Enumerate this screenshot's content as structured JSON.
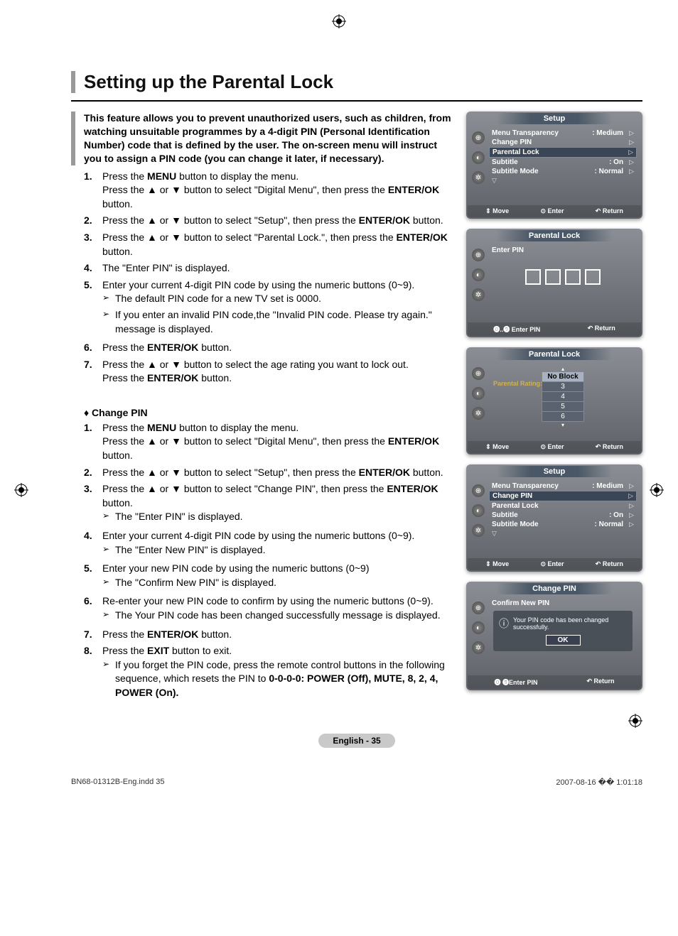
{
  "page": {
    "title": "Setting up the Parental Lock",
    "intro": "This feature allows you to prevent unauthorized users, such as children, from watching unsuitable programmes by a 4-digit PIN (Personal Identification Number) code that is defined by the user.  The on-screen menu will instruct you to assign a PIN code (you can change it later, if necessary).",
    "badge": "English - 35"
  },
  "steps1": [
    {
      "n": "1.",
      "body": "Press the <b>MENU</b> button to display the menu.<br>Press the ▲ or ▼ button to select \"Digital Menu\", then press the <b>ENTER/OK</b> button."
    },
    {
      "n": "2.",
      "body": "Press the ▲ or ▼ button to select \"Setup\", then press the <b>ENTER/OK</b> button."
    },
    {
      "n": "3.",
      "body": "Press the ▲ or ▼ button to select \"Parental Lock.\", then press the <b>ENTER/OK</b> button."
    },
    {
      "n": "4.",
      "body": "The \"Enter PIN\" is displayed."
    },
    {
      "n": "5.",
      "body": "Enter your current 4-digit PIN code by using the numeric buttons (0~9).",
      "subs": [
        "The default PIN code for a new TV set is 0000.",
        "If you enter an invalid PIN code,the \"Invalid PIN code. Please try again.\" message is displayed."
      ]
    },
    {
      "n": "6.",
      "body": "Press the <b>ENTER/OK</b> button."
    },
    {
      "n": "7.",
      "body": "Press the ▲ or ▼ button to select the age rating you want to lock out.<br>Press the <b>ENTER/OK</b> button."
    }
  ],
  "subheading": "Change PIN",
  "steps2": [
    {
      "n": "1.",
      "body": "Press the <b>MENU</b> button to display the menu.<br>Press the ▲ or ▼ button to select \"Digital Menu\", then press the <b>ENTER/OK</b> button."
    },
    {
      "n": "2.",
      "body": "Press the ▲ or ▼ button to select \"Setup\", then press the <b>ENTER/OK</b> button."
    },
    {
      "n": "3.",
      "body": "Press the ▲ or ▼ button to select \"Change PIN\", then press the <b>ENTER/OK</b> button.",
      "subs": [
        "The \"Enter PIN\" is displayed."
      ]
    },
    {
      "n": "4.",
      "body": "Enter your current 4-digit PIN code by using the numeric buttons (0~9).",
      "subs": [
        "The \"Enter New PIN\" is displayed."
      ]
    },
    {
      "n": "5.",
      "body": "Enter your new PIN code by using the numeric buttons (0~9)",
      "subs": [
        "The \"Confirm New PIN\" is displayed."
      ]
    },
    {
      "n": "6.",
      "body": "Re-enter your new PIN code to confirm by using the numeric buttons (0~9).",
      "subs": [
        "The Your PIN code has been changed successfully message is displayed."
      ]
    },
    {
      "n": "7.",
      "body": "Press the <b>ENTER/OK</b> button."
    },
    {
      "n": "8.",
      "body": "Press the <b>EXIT</b> button to exit.",
      "subs": [
        "If you forget the PIN code, press the remote control buttons in the following sequence, which resets the PIN to <b>0-0-0-0: POWER (Off), MUTE, 8, 2, 4, POWER (On).</b>"
      ]
    }
  ],
  "osd": {
    "setup_title": "Setup",
    "menu_items": [
      {
        "label": "Menu Transparency",
        "val": ": Medium",
        "arrow": "▷"
      },
      {
        "label": "Change PIN",
        "val": "",
        "arrow": "▷"
      },
      {
        "label": "Parental Lock",
        "val": "",
        "arrow": "▷",
        "hl": true
      },
      {
        "label": "Subtitle",
        "val": ": On",
        "arrow": "▷"
      },
      {
        "label": "Subtitle  Mode",
        "val": ": Normal",
        "arrow": "▷"
      }
    ],
    "footer_move": "Move",
    "footer_enter": "Enter",
    "footer_return": "Return",
    "footer_enterpin": "Enter PIN",
    "parental_title": "Parental Lock",
    "enter_pin": "Enter PIN",
    "rating_label": "Parental Rating:",
    "rating_items": [
      "No Block",
      "3",
      "4",
      "5",
      "6"
    ],
    "setup2_items": [
      {
        "label": "Menu Transparency",
        "val": ": Medium",
        "arrow": "▷"
      },
      {
        "label": "Change PIN",
        "val": "",
        "arrow": "▷",
        "hl": true
      },
      {
        "label": "Parental Lock",
        "val": "",
        "arrow": "▷"
      },
      {
        "label": "Subtitle",
        "val": ": On",
        "arrow": "▷"
      },
      {
        "label": "Subtitle  Mode",
        "val": ": Normal",
        "arrow": "▷"
      }
    ],
    "changepin_title": "Change PIN",
    "confirm_new": "Confirm New PIN",
    "confirm_msg": "Your PIN code has been changed successfully.",
    "ok": "OK"
  },
  "footer": {
    "left": "BN68-01312B-Eng.indd   35",
    "right": "2007-08-16   �� 1:01:18"
  },
  "colors": {
    "title_border": "#999999",
    "osd_bg_top": "#8b8f95",
    "osd_bg_bottom": "#5e6268",
    "osd_row_hl": "#3a4656",
    "badge_bg": "#c9c9c9"
  }
}
